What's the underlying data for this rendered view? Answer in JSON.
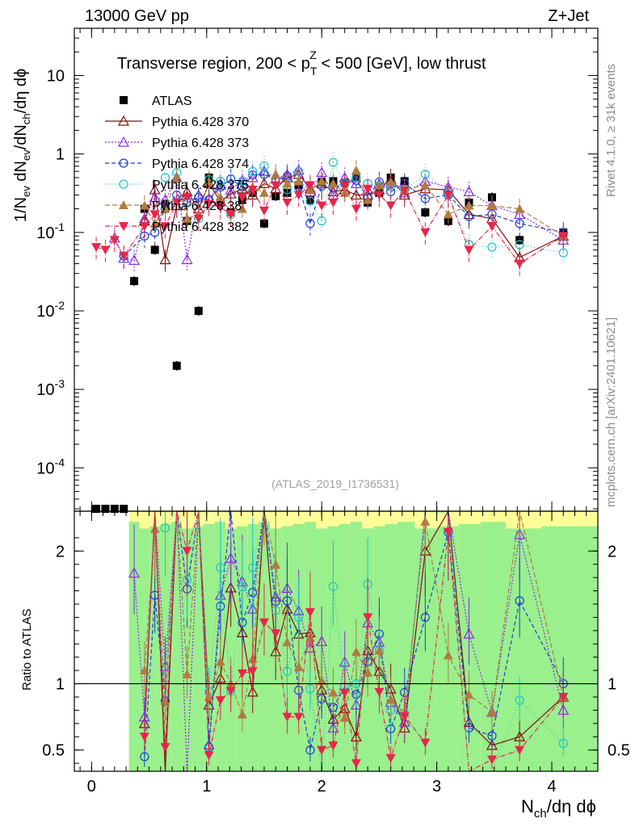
{
  "header": {
    "left": "13000 GeV pp",
    "right": "Z+Jet"
  },
  "side_labels": {
    "rivet": "Rivet 4.1.0, ≥ 31k events",
    "url": "mcplots.cern.ch [arXiv:2401.10621]"
  },
  "chart_data": {
    "type": "scatter",
    "title_parts": {
      "prefix": "Transverse region, 200 < p",
      "sup": "Z",
      "sub": "T",
      "suffix": " < 500 [GeV], low thrust"
    },
    "analysis_id": "(ATLAS_2019_I1736531)",
    "xlabel_parts": {
      "main": "N",
      "sub": "ch",
      "rest": "/dη dϕ"
    },
    "ylabel_parts": [
      "1/N",
      "ev",
      " dN",
      "ev",
      "/dN",
      "ch",
      "/dη dϕ"
    ],
    "ratio_ylabel": "Ratio to ATLAS",
    "xlim": [
      -0.15,
      4.4
    ],
    "ylim_log": [
      2.8e-05,
      40
    ],
    "ratio_ylim": [
      0.34,
      2.3
    ],
    "xticks": [
      "0",
      "1",
      "2",
      "3",
      "4"
    ],
    "xtick_values": [
      0,
      1,
      2,
      3,
      4
    ],
    "yticks_main": [
      {
        "base": "10",
        "exp": "-4",
        "value": 0.0001
      },
      {
        "base": "10",
        "exp": "-3",
        "value": 0.001
      },
      {
        "base": "10",
        "exp": "-2",
        "value": 0.01
      },
      {
        "base": "10",
        "exp": "-1",
        "value": 0.1
      },
      {
        "base": "1",
        "exp": "",
        "value": 1
      },
      {
        "base": "10",
        "exp": "",
        "value": 10
      }
    ],
    "yticks_ratio": [
      {
        "label": "0.5",
        "value": 0.5
      },
      {
        "label": "1",
        "value": 1
      },
      {
        "label": "2",
        "value": 2
      }
    ],
    "x": [
      0.04,
      0.12,
      0.2,
      0.28,
      0.37,
      0.46,
      0.55,
      0.64,
      0.74,
      0.83,
      0.93,
      1.02,
      1.12,
      1.21,
      1.31,
      1.4,
      1.5,
      1.6,
      1.7,
      1.8,
      1.9,
      2.0,
      2.1,
      2.2,
      2.3,
      2.4,
      2.5,
      2.6,
      2.72,
      2.9,
      3.1,
      3.28,
      3.48,
      3.72,
      4.1
    ],
    "series": [
      {
        "name": "ATLAS",
        "color": "#000000",
        "marker": "square",
        "dash": "",
        "values": [
          2.8e-05,
          2.8e-05,
          2.8e-05,
          2.8e-05,
          0.024,
          0.2,
          0.06,
          0.23,
          0.002,
          0.14,
          0.01,
          0.5,
          0.24,
          0.18,
          0.26,
          0.32,
          0.13,
          0.29,
          0.32,
          0.4,
          0.26,
          0.44,
          0.45,
          0.43,
          0.5,
          0.24,
          0.32,
          0.5,
          0.45,
          0.18,
          0.14,
          0.24,
          0.28,
          0.08,
          0.1
        ]
      },
      {
        "name": "Pythia 6.428 370",
        "color": "#7f1010",
        "marker": "triangle-up-open",
        "dash": "",
        "values": [
          null,
          null,
          null,
          null,
          null,
          0.14,
          0.35,
          0.045,
          0.22,
          0.33,
          0.2,
          0.42,
          0.25,
          0.31,
          0.36,
          0.3,
          0.42,
          0.36,
          0.5,
          0.55,
          0.36,
          0.42,
          0.33,
          0.35,
          0.3,
          0.3,
          0.35,
          0.48,
          0.3,
          0.36,
          0.35,
          0.17,
          0.15,
          0.048,
          0.09
        ]
      },
      {
        "name": "Pythia 6.428 373",
        "color": "#8a2be2",
        "marker": "triangle-up-open",
        "dash": "2,2",
        "values": [
          null,
          null,
          0.085,
          0.047,
          0.044,
          0.15,
          0.28,
          0.26,
          0.5,
          0.045,
          0.3,
          0.27,
          0.4,
          0.35,
          0.46,
          0.5,
          0.6,
          0.48,
          0.55,
          0.62,
          0.33,
          0.58,
          0.3,
          0.5,
          0.42,
          0.35,
          0.42,
          0.43,
          0.32,
          0.45,
          0.38,
          0.33,
          0.22,
          0.17,
          0.08
        ]
      },
      {
        "name": "Pythia 6.428 374",
        "color": "#1f3fd1",
        "marker": "circle-open",
        "dash": "5,3",
        "values": [
          null,
          null,
          null,
          0.05,
          null,
          0.09,
          0.1,
          0.2,
          0.3,
          0.24,
          0.28,
          0.26,
          0.38,
          0.48,
          0.38,
          0.54,
          0.55,
          0.47,
          0.52,
          0.38,
          0.13,
          0.39,
          0.37,
          0.42,
          0.46,
          0.28,
          0.44,
          0.33,
          0.42,
          0.27,
          0.3,
          0.16,
          0.17,
          0.13,
          0.1
        ]
      },
      {
        "name": "Pythia 6.428 375",
        "color": "#20c5c5",
        "marker": "circle-open",
        "dash": "1,3",
        "values": [
          null,
          null,
          null,
          null,
          null,
          null,
          null,
          0.5,
          0.58,
          0.25,
          0.15,
          0.47,
          0.45,
          0.17,
          0.45,
          0.6,
          0.7,
          0.45,
          0.35,
          0.6,
          0.25,
          0.14,
          0.78,
          0.42,
          0.5,
          0.42,
          0.4,
          0.4,
          0.35,
          0.55,
          0.32,
          0.07,
          0.065,
          0.07,
          0.055
        ]
      },
      {
        "name": "Pythia 6.428 38",
        "color": "#b07c40",
        "marker": "triangle-up-filled",
        "dash": "6,3",
        "values": [
          null,
          null,
          null,
          null,
          null,
          0.22,
          0.13,
          0.2,
          0.5,
          0.15,
          0.17,
          0.45,
          0.28,
          0.18,
          0.2,
          0.38,
          0.32,
          0.55,
          0.42,
          0.45,
          0.35,
          0.45,
          0.42,
          0.32,
          0.62,
          0.26,
          0.4,
          0.44,
          0.35,
          0.4,
          0.17,
          0.22,
          0.22,
          0.2,
          0.09
        ]
      },
      {
        "name": "Pythia 6.428 382",
        "color": "#e8254b",
        "marker": "triangle-down-filled",
        "dash": "6,2,1,2",
        "values": [
          0.065,
          0.06,
          0.08,
          0.05,
          null,
          0.12,
          0.17,
          0.12,
          0.24,
          0.28,
          0.15,
          0.23,
          0.21,
          0.17,
          0.28,
          0.35,
          0.19,
          0.4,
          0.24,
          0.3,
          0.4,
          0.22,
          0.24,
          0.4,
          0.2,
          0.36,
          0.3,
          0.22,
          0.34,
          0.1,
          0.3,
          0.06,
          0.12,
          0.04,
          0.09
        ]
      }
    ],
    "legend": [
      "ATLAS",
      "Pythia 6.428 370",
      "Pythia 6.428 373",
      "Pythia 6.428 374",
      "Pythia 6.428 375",
      "Pythia 6.428 38",
      "Pythia 6.428 382"
    ]
  }
}
